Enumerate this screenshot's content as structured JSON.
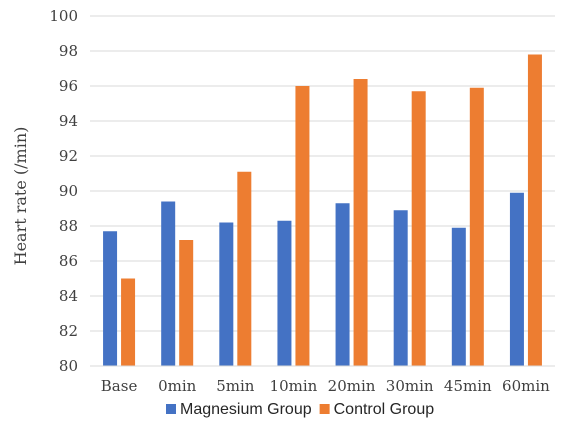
{
  "chart_data": {
    "type": "bar",
    "title": "",
    "xlabel": "",
    "ylabel": "Heart rate (/min)",
    "ylim": [
      80,
      100
    ],
    "yticks": [
      80,
      82,
      84,
      86,
      88,
      90,
      92,
      94,
      96,
      98,
      100
    ],
    "grid": "horizontal",
    "legend_position": "bottom",
    "categories": [
      "Base",
      "0min",
      "5min",
      "10min",
      "20min",
      "30min",
      "45min",
      "60min"
    ],
    "series": [
      {
        "name": "Magnesium Group",
        "color": "#4472C4",
        "values": [
          87.7,
          89.4,
          88.2,
          88.3,
          89.3,
          88.9,
          87.9,
          89.9
        ]
      },
      {
        "name": "Control Group",
        "color": "#ED7D31",
        "values": [
          85.0,
          87.2,
          91.1,
          96.0,
          96.4,
          95.7,
          95.9,
          97.8
        ]
      }
    ]
  }
}
